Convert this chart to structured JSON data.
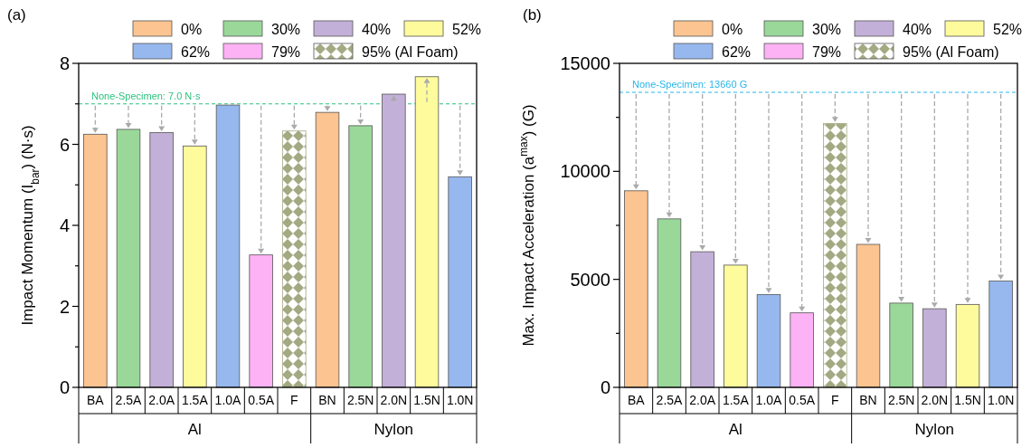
{
  "chart_data": [
    {
      "type": "bar",
      "title": "(a)",
      "ylabel": "Impact Momentum (I$_{bar}$) (N·s)",
      "legend": "top",
      "categories": [
        "BA",
        "2.5A",
        "2.0A",
        "1.5A",
        "1.0A",
        "0.5A",
        "F",
        "BN",
        "2.5N",
        "2.0N",
        "1.5N",
        "1.0N"
      ],
      "series": [
        {
          "name": "0%",
          "color": "#fcc490",
          "values": [
            6.25,
            null,
            null,
            null,
            null,
            null,
            null,
            6.79,
            null,
            null,
            null,
            null
          ]
        },
        {
          "name": "30%",
          "color": "#9ad89a",
          "values": [
            null,
            6.37,
            null,
            null,
            null,
            null,
            null,
            null,
            6.46,
            null,
            null,
            null
          ]
        },
        {
          "name": "40%",
          "color": "#c3b0d8",
          "values": [
            null,
            null,
            6.29,
            null,
            null,
            null,
            null,
            null,
            null,
            7.24,
            null,
            null
          ]
        },
        {
          "name": "52%",
          "color": "#fdfb9c",
          "values": [
            null,
            null,
            null,
            5.96,
            null,
            null,
            null,
            null,
            null,
            null,
            7.67,
            null
          ]
        },
        {
          "name": "62%",
          "color": "#96b8ee",
          "values": [
            null,
            null,
            null,
            null,
            6.97,
            null,
            null,
            null,
            null,
            null,
            null,
            5.2
          ]
        },
        {
          "name": "79%",
          "color": "#fcb2f4",
          "values": [
            null,
            null,
            null,
            null,
            null,
            3.27,
            null,
            null,
            null,
            null,
            null,
            null
          ]
        },
        {
          "name": "95% (Al Foam)",
          "color": "#a3a982",
          "values": [
            null,
            null,
            null,
            null,
            null,
            null,
            6.33,
            null,
            null,
            null,
            null,
            null
          ]
        }
      ],
      "ylim": [
        0,
        8
      ],
      "yticks": [
        0,
        {
          "value": 1,
          "label": null
        },
        2,
        {
          "value": 3,
          "label": null
        },
        4,
        {
          "value": 5,
          "label": null
        },
        6,
        {
          "value": 7,
          "label": null
        },
        8
      ],
      "ref_lines": [
        {
          "axis": "y",
          "value": 7.0,
          "label": "None-Specimen: 7.0 N·s",
          "color": "#2ec27e",
          "line_style": "dashed"
        }
      ],
      "annotations": [
        "Al",
        "Nylon"
      ]
    },
    {
      "type": "bar",
      "title": "(b)",
      "ylabel": "Max. Impact Acceleration (a$^{max}$) (G)",
      "legend": "top",
      "categories": [
        "BA",
        "2.5A",
        "2.0A",
        "1.5A",
        "1.0A",
        "0.5A",
        "F",
        "BN",
        "2.5N",
        "2.0N",
        "1.5N",
        "1.0N"
      ],
      "series": [
        {
          "name": "0%",
          "color": "#fcc490",
          "values": [
            9100,
            null,
            null,
            null,
            null,
            null,
            null,
            6620,
            null,
            null,
            null,
            null
          ]
        },
        {
          "name": "30%",
          "color": "#9ad89a",
          "values": [
            null,
            7800,
            null,
            null,
            null,
            null,
            null,
            null,
            3900,
            null,
            null,
            null
          ]
        },
        {
          "name": "40%",
          "color": "#c3b0d8",
          "values": [
            null,
            null,
            6280,
            null,
            null,
            null,
            null,
            null,
            null,
            3640,
            null,
            null
          ]
        },
        {
          "name": "52%",
          "color": "#fdfb9c",
          "values": [
            null,
            null,
            null,
            5660,
            null,
            null,
            null,
            null,
            null,
            null,
            3840,
            null
          ]
        },
        {
          "name": "62%",
          "color": "#96b8ee",
          "values": [
            null,
            null,
            null,
            null,
            4300,
            null,
            null,
            null,
            null,
            null,
            null,
            4920
          ]
        },
        {
          "name": "79%",
          "color": "#fcb2f4",
          "values": [
            null,
            null,
            null,
            null,
            null,
            3450,
            null,
            null,
            null,
            null,
            null,
            null
          ]
        },
        {
          "name": "95% (Al Foam)",
          "color": "#a3a982",
          "values": [
            null,
            null,
            null,
            null,
            null,
            null,
            12220,
            null,
            null,
            null,
            null,
            null
          ]
        }
      ],
      "ylim": [
        0,
        15000
      ],
      "yticks": [
        0,
        {
          "value": 2500,
          "label": null
        },
        5000,
        {
          "value": 7500,
          "label": null
        },
        10000,
        {
          "value": 12500,
          "label": null
        },
        15000
      ],
      "ref_lines": [
        {
          "axis": "y",
          "value": 13660,
          "label": "None-Specimen: 13660 G",
          "color": "#29b6e8",
          "line_style": "dashed"
        }
      ],
      "annotations": [
        "Al",
        "Nylon"
      ]
    }
  ]
}
